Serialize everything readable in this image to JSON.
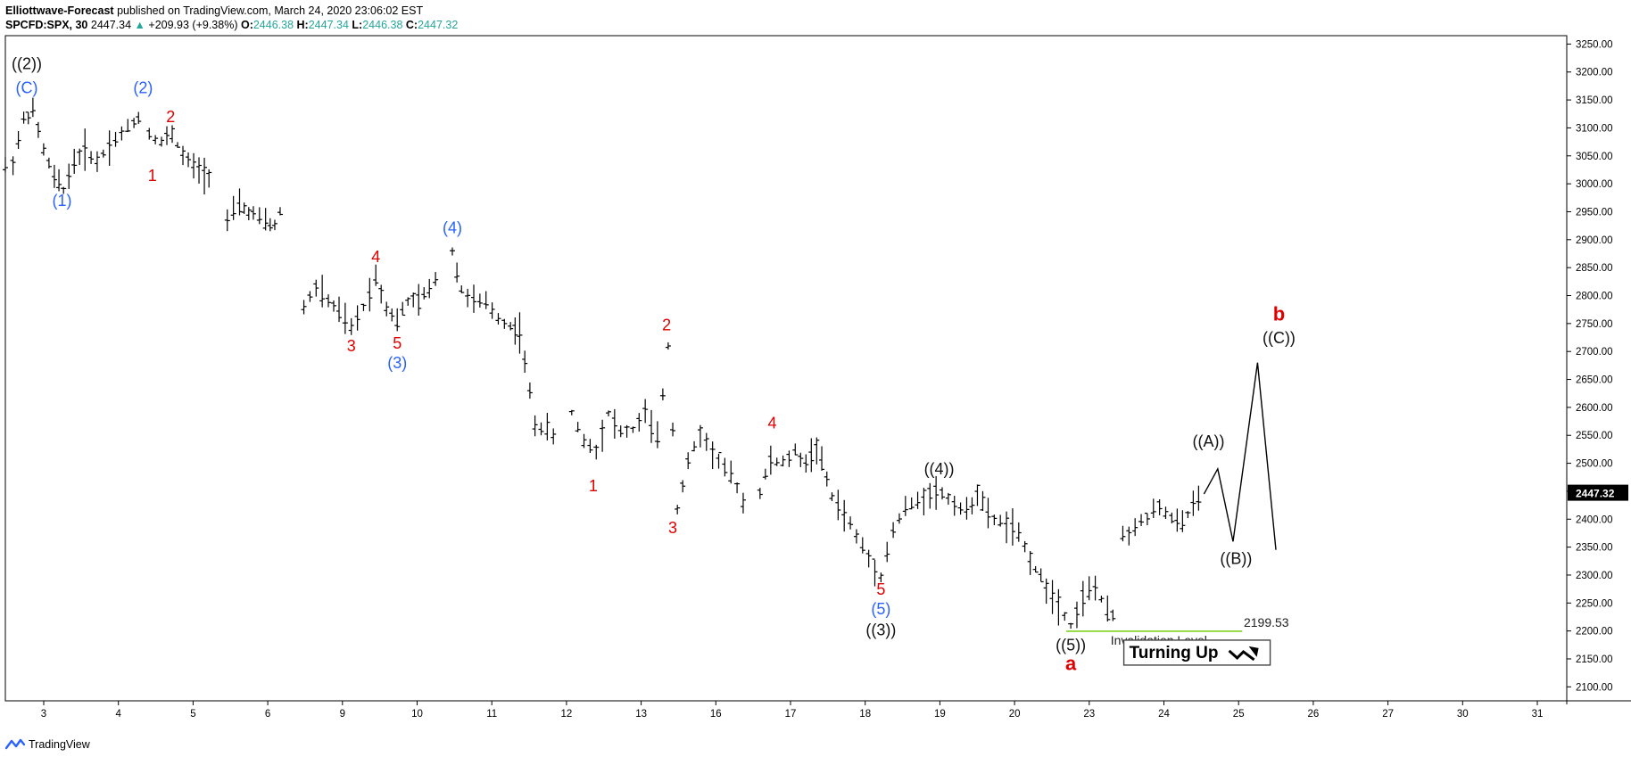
{
  "header": {
    "author": "Elliottwave-Forecast",
    "published": "published on TradingView.com, March 24, 2020 23:06:02 EST",
    "symbol": "SPCFD:SPX, 30",
    "last": "2447.34",
    "arrow": "▲",
    "change": "+209.93 (+9.38%)",
    "o_label": "O:",
    "o": "2446.38",
    "h_label": "H:",
    "h": "2447.34",
    "l_label": "L:",
    "l": "2446.38",
    "c_label": "C:",
    "c": "2447.32"
  },
  "footer": {
    "brand": "TradingView",
    "logo_icon": "tradingview-logo-icon"
  },
  "colors": {
    "bars": "#000000",
    "blue_labels": "#2962ff",
    "red_labels": "#e00000",
    "invalidation": "#7ed321",
    "projection": "#000000"
  },
  "chart_data": {
    "type": "ohlc-bar",
    "title": "",
    "ylim": [
      2075,
      3265
    ],
    "y_ticks": [
      "3250.00",
      "3200.00",
      "3150.00",
      "3100.00",
      "3050.00",
      "3000.00",
      "2950.00",
      "2900.00",
      "2850.00",
      "2800.00",
      "2750.00",
      "2700.00",
      "2650.00",
      "2600.00",
      "2550.00",
      "2500.00",
      "2450.00",
      "2400.00",
      "2350.00",
      "2300.00",
      "2250.00",
      "2200.00",
      "2150.00",
      "2100.00"
    ],
    "x_ticks": [
      "3",
      "4",
      "5",
      "6",
      "9",
      "10",
      "11",
      "12",
      "13",
      "16",
      "17",
      "18",
      "19",
      "20",
      "23",
      "24",
      "25",
      "26",
      "27",
      "30",
      "31"
    ],
    "last_price_label": "2447.32",
    "price_path": [
      [
        0,
        3030
      ],
      [
        0.5,
        3040
      ],
      [
        1.2,
        3115
      ],
      [
        1.8,
        3130
      ],
      [
        2.5,
        3060
      ],
      [
        3.2,
        3010
      ],
      [
        3.8,
        2990
      ],
      [
        4.5,
        3040
      ],
      [
        5.2,
        3060
      ],
      [
        6,
        3040
      ],
      [
        6.8,
        3070
      ],
      [
        7.6,
        3090
      ],
      [
        8.4,
        3110
      ],
      [
        9,
        3130
      ],
      [
        9.4,
        3090
      ],
      [
        10.2,
        3075
      ],
      [
        10.9,
        3090
      ],
      [
        11.6,
        3050
      ],
      [
        12.3,
        3030
      ],
      [
        13,
        3020
      ],
      [
        13.6,
        3015
      ],
      [
        14.5,
        2935
      ],
      [
        15.3,
        2960
      ],
      [
        16.2,
        2945
      ],
      [
        17,
        2930
      ],
      [
        17.6,
        2925
      ],
      [
        18.3,
        2975
      ],
      [
        19.5,
        2780
      ],
      [
        20.3,
        2815
      ],
      [
        21.1,
        2790
      ],
      [
        21.8,
        2770
      ],
      [
        22.6,
        2740
      ],
      [
        23.4,
        2780
      ],
      [
        24.2,
        2835
      ],
      [
        24.9,
        2780
      ],
      [
        25.6,
        2755
      ],
      [
        26.3,
        2790
      ],
      [
        27,
        2790
      ],
      [
        27.7,
        2810
      ],
      [
        28.5,
        2855
      ],
      [
        29.2,
        2880
      ],
      [
        29.8,
        2810
      ],
      [
        30.6,
        2790
      ],
      [
        31.4,
        2785
      ],
      [
        32.2,
        2760
      ],
      [
        33,
        2745
      ],
      [
        33.6,
        2735
      ],
      [
        34.6,
        2570
      ],
      [
        35.4,
        2560
      ],
      [
        36.2,
        2535
      ],
      [
        37,
        2590
      ],
      [
        37.8,
        2540
      ],
      [
        38.6,
        2525
      ],
      [
        39.4,
        2590
      ],
      [
        40.2,
        2555
      ],
      [
        41,
        2560
      ],
      [
        41.8,
        2590
      ],
      [
        42.6,
        2540
      ],
      [
        43.3,
        2710
      ],
      [
        43.9,
        2420
      ],
      [
        44.6,
        2500
      ],
      [
        45.4,
        2555
      ],
      [
        46.2,
        2520
      ],
      [
        47,
        2490
      ],
      [
        47.8,
        2460
      ],
      [
        48.6,
        2400
      ],
      [
        49.3,
        2450
      ],
      [
        50,
        2505
      ],
      [
        50.8,
        2500
      ],
      [
        51.6,
        2520
      ],
      [
        52.3,
        2500
      ],
      [
        53,
        2530
      ],
      [
        54,
        2440
      ],
      [
        54.8,
        2410
      ],
      [
        55.6,
        2370
      ],
      [
        56.4,
        2330
      ],
      [
        57.2,
        2300
      ],
      [
        58,
        2380
      ],
      [
        58.8,
        2420
      ],
      [
        59.6,
        2430
      ],
      [
        60.4,
        2450
      ],
      [
        61.2,
        2445
      ],
      [
        62,
        2430
      ],
      [
        62.8,
        2410
      ],
      [
        63.5,
        2450
      ],
      [
        64.2,
        2405
      ],
      [
        65,
        2395
      ],
      [
        65.8,
        2385
      ],
      [
        66.6,
        2350
      ],
      [
        67.3,
        2310
      ],
      [
        68,
        2280
      ],
      [
        68.8,
        2250
      ],
      [
        69.6,
        2210
      ],
      [
        70.4,
        2260
      ],
      [
        71.2,
        2280
      ],
      [
        72,
        2230
      ],
      [
        72.7,
        2225
      ]
    ],
    "segments_break_after": [
      13,
      20,
      26,
      39,
      49,
      65
    ],
    "price_path_2": [
      [
        73,
        2370
      ],
      [
        73.8,
        2385
      ],
      [
        74.6,
        2405
      ],
      [
        75.4,
        2420
      ],
      [
        76.2,
        2400
      ],
      [
        76.9,
        2390
      ],
      [
        77.6,
        2430
      ],
      [
        78.3,
        2445
      ]
    ],
    "projection": [
      [
        78.3,
        2445
      ],
      [
        79.2,
        2490
      ],
      [
        80.2,
        2360
      ],
      [
        81.8,
        2680
      ],
      [
        83,
        2345
      ]
    ],
    "invalidation": {
      "value": 2199.53,
      "label": "Invalidation Level",
      "price_label": "2199.53"
    },
    "wave_labels": [
      {
        "text": "((2))",
        "color": "black",
        "x": 1.4,
        "y": 3205
      },
      {
        "text": "(C)",
        "color": "blue",
        "x": 1.4,
        "y": 3162
      },
      {
        "text": "(2)",
        "color": "blue",
        "x": 9.0,
        "y": 3162
      },
      {
        "text": "2",
        "color": "red",
        "x": 10.8,
        "y": 3110
      },
      {
        "text": "1",
        "color": "red",
        "x": 9.6,
        "y": 3005
      },
      {
        "text": "(1)",
        "color": "blue",
        "x": 3.7,
        "y": 2960
      },
      {
        "text": "(4)",
        "color": "blue",
        "x": 29.2,
        "y": 2912
      },
      {
        "text": "4",
        "color": "red",
        "x": 24.2,
        "y": 2860
      },
      {
        "text": "3",
        "color": "red",
        "x": 22.6,
        "y": 2700
      },
      {
        "text": "5",
        "color": "red",
        "x": 25.6,
        "y": 2705
      },
      {
        "text": "(3)",
        "color": "blue",
        "x": 25.6,
        "y": 2670
      },
      {
        "text": "2",
        "color": "red",
        "x": 43.2,
        "y": 2738
      },
      {
        "text": "1",
        "color": "red",
        "x": 38.4,
        "y": 2450
      },
      {
        "text": "3",
        "color": "red",
        "x": 43.6,
        "y": 2375
      },
      {
        "text": "4",
        "color": "red",
        "x": 50.1,
        "y": 2562
      },
      {
        "text": "((4))",
        "color": "black",
        "x": 61.0,
        "y": 2480
      },
      {
        "text": "5",
        "color": "red",
        "x": 57.2,
        "y": 2265
      },
      {
        "text": "(5)",
        "color": "blue",
        "x": 57.2,
        "y": 2230
      },
      {
        "text": "((3))",
        "color": "black",
        "x": 57.2,
        "y": 2192
      },
      {
        "text": "((5))",
        "color": "black",
        "x": 69.6,
        "y": 2165
      },
      {
        "text": "a",
        "color": "red",
        "x": 69.6,
        "y": 2130,
        "bold": true
      },
      {
        "text": "((A))",
        "color": "black",
        "x": 78.6,
        "y": 2530
      },
      {
        "text": "((B))",
        "color": "black",
        "x": 80.4,
        "y": 2320
      },
      {
        "text": "((C))",
        "color": "black",
        "x": 83.2,
        "y": 2715
      },
      {
        "text": "b",
        "color": "red",
        "x": 83.2,
        "y": 2755,
        "bold": true
      }
    ],
    "callout": {
      "text": "Turning Up",
      "icon": "trend-up-arrow-icon"
    }
  }
}
